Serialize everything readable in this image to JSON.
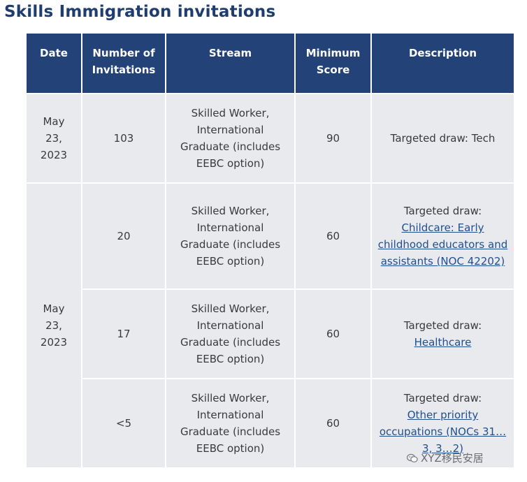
{
  "page_title": "Skills Immigration invitations",
  "table": {
    "headers": [
      "Date",
      "Number of Invitations",
      "Stream",
      "Minimum Score",
      "Description"
    ],
    "rows": [
      {
        "date": "May 23, 2023",
        "invitations": "103",
        "stream": "Skilled Worker, International Graduate (includes EEBC option)",
        "score": "90",
        "description_prefix": "Targeted draw: Tech",
        "description_link": ""
      },
      {
        "date": "May 23, 2023",
        "invitations": "20",
        "stream": "Skilled Worker, International Graduate (includes EEBC option)",
        "score": "60",
        "description_prefix": "Targeted draw:",
        "description_link": "Childcare: Early childhood educators and assistants (NOC 42202)"
      },
      {
        "date": "",
        "invitations": "17",
        "stream": "Skilled Worker, International Graduate (includes EEBC option)",
        "score": "60",
        "description_prefix": "Targeted draw:",
        "description_link": "Healthcare"
      },
      {
        "date": "",
        "invitations": "<5",
        "stream": "Skilled Worker, International Graduate (includes EEBC option)",
        "score": "60",
        "description_prefix": "Targeted draw:",
        "description_link": "Other priority occupations (NOCs 31…3, 3…2)"
      }
    ]
  },
  "watermark": {
    "text": "XYZ移民安居",
    "icon": "wechat-icon"
  }
}
